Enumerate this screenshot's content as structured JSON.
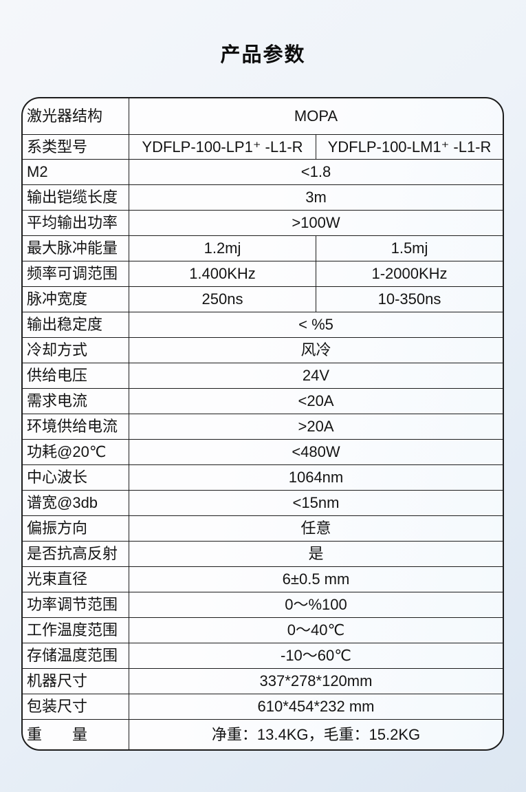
{
  "page": {
    "title": "产品参数"
  },
  "table": {
    "rows": [
      {
        "label": "激光器结构",
        "span": "MOPA"
      },
      {
        "label": "系类型号",
        "values": [
          "YDFLP-100-LP1⁺ -L1-R",
          "YDFLP-100-LM1⁺ -L1-R"
        ]
      },
      {
        "label": "M2",
        "span": "<1.8"
      },
      {
        "label": "输出铠缆长度",
        "span": "3m"
      },
      {
        "label": "平均输出功率",
        "span": ">100W"
      },
      {
        "label": "最大脉冲能量",
        "values": [
          "1.2mj",
          "1.5mj"
        ]
      },
      {
        "label": "频率可调范围",
        "values": [
          "1.400KHz",
          "1-2000KHz"
        ]
      },
      {
        "label": "脉冲宽度",
        "values": [
          "250ns",
          "10-350ns"
        ]
      },
      {
        "label": "输出稳定度",
        "span": "< %5"
      },
      {
        "label": "冷却方式",
        "span": "风冷"
      },
      {
        "label": "供给电压",
        "span": "24V"
      },
      {
        "label": "需求电流",
        "span": "<20A"
      },
      {
        "label": "环境供给电流",
        "span": ">20A"
      },
      {
        "label": "功耗@20℃",
        "span": "<480W"
      },
      {
        "label": "中心波长",
        "span": "1064nm"
      },
      {
        "label": "谱宽@3db",
        "span": "<15nm"
      },
      {
        "label": "偏振方向",
        "span": "任意"
      },
      {
        "label": "是否抗高反射",
        "span": "是"
      },
      {
        "label": "光束直径",
        "span": "6±0.5 mm"
      },
      {
        "label": "功率调节范围",
        "span": "0～%100"
      },
      {
        "label": "工作温度范围",
        "span": "0～40℃"
      },
      {
        "label": "存储温度范围",
        "span": "-10～60℃"
      },
      {
        "label": "机器尺寸",
        "span": "337*278*120mm"
      },
      {
        "label": "包装尺寸",
        "span": "610*454*232 mm"
      },
      {
        "label": "重　　量",
        "span": "净重：13.4KG，毛重：15.2KG"
      }
    ]
  }
}
